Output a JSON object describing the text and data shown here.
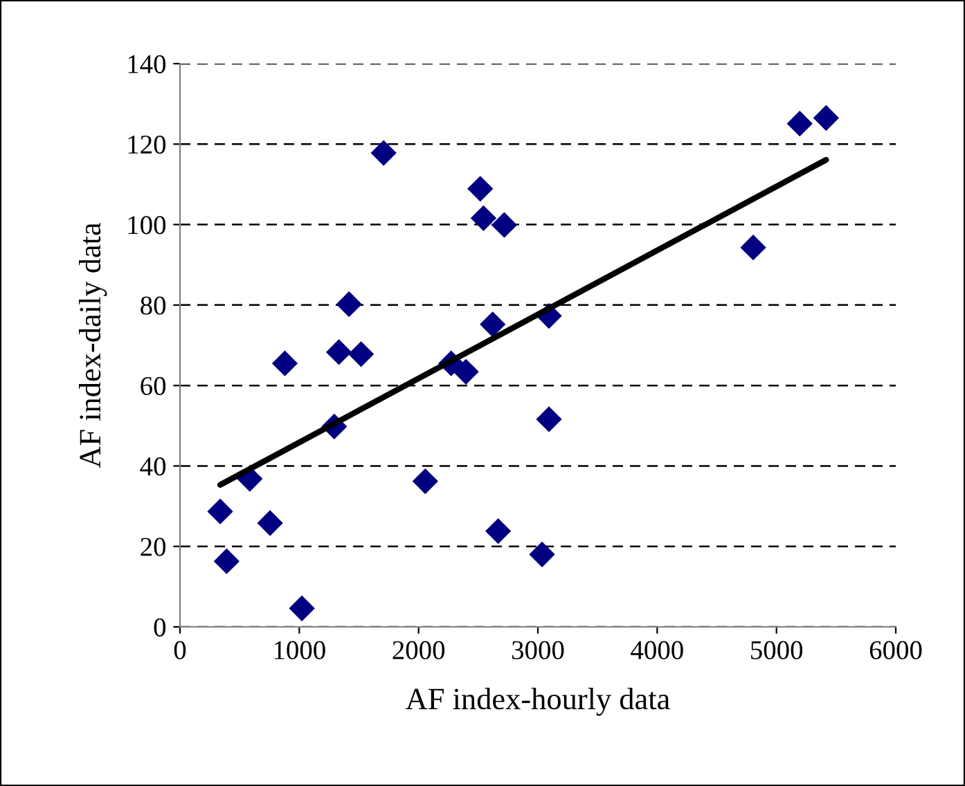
{
  "chart_data": {
    "type": "scatter",
    "xlabel": "AF index-hourly data",
    "ylabel": "AF index-daily data",
    "xlim": [
      0,
      6000
    ],
    "xticks": [
      0,
      1000,
      2000,
      3000,
      4000,
      5000,
      6000
    ],
    "ylim": [
      0,
      140
    ],
    "yticks": [
      0,
      20,
      40,
      60,
      80,
      100,
      120,
      140
    ],
    "grid": "y",
    "legend": false,
    "series": [
      {
        "color": "#000080",
        "marker": "diamond",
        "x": [
          337,
          391,
          585,
          755,
          879,
          1022,
          1293,
          1332,
          1417,
          1518,
          1707,
          2056,
          2273,
          2397,
          2517,
          2544,
          2718,
          2621,
          2667,
          3035,
          3093,
          3093,
          4805,
          5195,
          5416
        ],
        "values": [
          28.7,
          16.3,
          36.8,
          25.8,
          65.5,
          4.6,
          49.8,
          68.3,
          80.2,
          67.8,
          117.8,
          36.2,
          65.5,
          63.4,
          108.9,
          101.6,
          99.9,
          75.2,
          23.8,
          18.0,
          77.3,
          51.6,
          94.3,
          125.1,
          126.5
        ]
      },
      {
        "type": "line",
        "color": "#000000",
        "marker": "none",
        "line_style": "solid",
        "x": [
          337,
          5416
        ],
        "values": [
          35.3,
          116.1
        ]
      }
    ]
  }
}
